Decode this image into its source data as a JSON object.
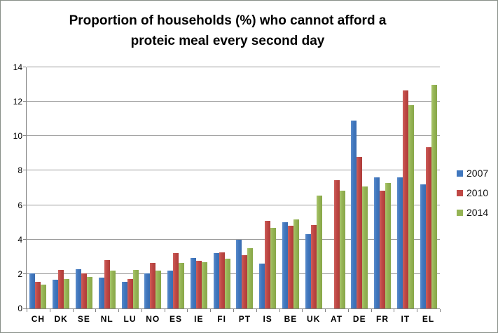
{
  "title": {
    "text": "Proportion of households (%) who cannot afford a proteic meal every second day",
    "lines": [
      "Proportion of households (%) who cannot afford a",
      "proteic meal every second day"
    ]
  },
  "legend": {
    "position": "right",
    "items": [
      {
        "label": "2007",
        "color_name": "blue",
        "color": "#4077BE"
      },
      {
        "label": "2010",
        "color_name": "red",
        "color": "#BF4845"
      },
      {
        "label": "2014",
        "color_name": "green",
        "color": "#95B454"
      }
    ]
  },
  "axes": {
    "y": {
      "min": 0,
      "max": 14,
      "step": 2,
      "tick_labels": [
        "0",
        "2",
        "4",
        "6",
        "8",
        "10",
        "12",
        "14"
      ]
    },
    "x": {
      "tick_labels": [
        "CH",
        "DK",
        "SE",
        "NL",
        "LU",
        "NO",
        "ES",
        "IE",
        "FI",
        "PT",
        "IS",
        "BE",
        "UK",
        "AT",
        "DE",
        "FR",
        "IT",
        "EL"
      ]
    }
  },
  "colors": {
    "background": "#ffffff",
    "chart_border": "#878f87",
    "gridline": "#9a9a9a",
    "axis_line": "#808080",
    "series_2007": "#4077BE",
    "series_2010": "#BF4845",
    "series_2014": "#95B454"
  },
  "chart_data": {
    "type": "bar",
    "title": "Proportion of households (%) who cannot afford a proteic meal every second day",
    "xlabel": "",
    "ylabel": "",
    "ylim": [
      0,
      14
    ],
    "grid": true,
    "legend_position": "right",
    "categories": [
      "CH",
      "DK",
      "SE",
      "NL",
      "LU",
      "NO",
      "ES",
      "IE",
      "FI",
      "PT",
      "IS",
      "BE",
      "UK",
      "AT",
      "DE",
      "FR",
      "IT",
      "EL"
    ],
    "series": [
      {
        "name": "2007",
        "color": "#4077BE",
        "values": [
          2.05,
          1.65,
          2.3,
          1.8,
          1.55,
          2.05,
          2.2,
          2.95,
          3.2,
          4.0,
          2.6,
          5.0,
          4.3,
          null,
          10.9,
          7.6,
          7.6,
          7.2
        ]
      },
      {
        "name": "2010",
        "color": "#BF4845",
        "values": [
          1.55,
          2.25,
          2.05,
          2.8,
          1.7,
          2.65,
          3.2,
          2.75,
          3.25,
          3.1,
          5.1,
          4.8,
          4.85,
          7.45,
          8.8,
          6.85,
          12.65,
          9.35
        ]
      },
      {
        "name": "2014",
        "color": "#95B454",
        "values": [
          1.4,
          1.7,
          1.85,
          2.2,
          2.25,
          2.2,
          2.65,
          2.7,
          2.9,
          3.5,
          4.7,
          5.15,
          6.55,
          6.85,
          7.1,
          7.3,
          11.8,
          13.0
        ]
      }
    ]
  }
}
